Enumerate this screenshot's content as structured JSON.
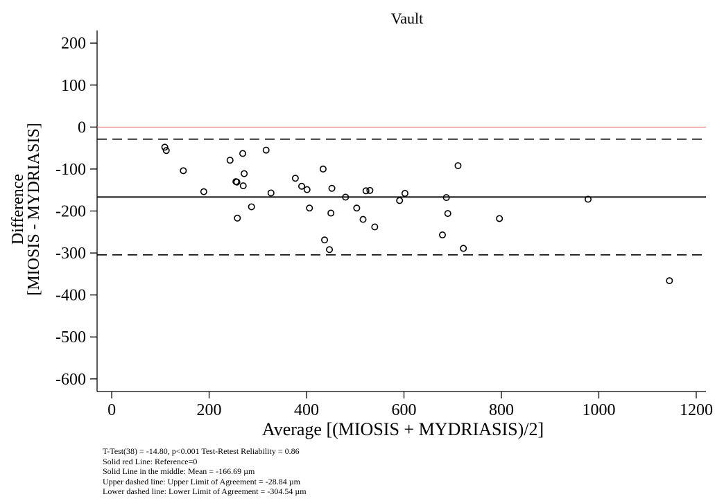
{
  "chart_data": {
    "type": "scatter",
    "title": "Vault",
    "xlabel": "Average [(MIOSIS  + MYDRIASIS)/2]",
    "ylabel": [
      "Difference",
      "[MIOSIS - MYDRIASIS]"
    ],
    "xlim": [
      -30,
      1220
    ],
    "ylim": [
      -630,
      230
    ],
    "xticks": [
      0,
      200,
      400,
      600,
      800,
      1000,
      1200
    ],
    "yticks": [
      200,
      100,
      0,
      -100,
      -200,
      -300,
      -400,
      -500,
      -600
    ],
    "grid": false,
    "reference_line": {
      "y": 0,
      "color": "#e06060",
      "label": "Reference=0"
    },
    "mean_line": {
      "y": -166.69
    },
    "upper_limit_line": {
      "y": -28.84
    },
    "lower_limit_line": {
      "y": -304.54
    },
    "points": [
      [
        109,
        -48
      ],
      [
        112,
        -56
      ],
      [
        147,
        -104
      ],
      [
        189,
        -154
      ],
      [
        243,
        -79
      ],
      [
        255,
        -130
      ],
      [
        257,
        -131
      ],
      [
        258,
        -217
      ],
      [
        269,
        -63
      ],
      [
        270,
        -140
      ],
      [
        272,
        -111
      ],
      [
        287,
        -190
      ],
      [
        317,
        -55
      ],
      [
        327,
        -157
      ],
      [
        377,
        -122
      ],
      [
        390,
        -141
      ],
      [
        401,
        -149
      ],
      [
        406,
        -193
      ],
      [
        434,
        -100
      ],
      [
        437,
        -269
      ],
      [
        447,
        -292
      ],
      [
        450,
        -205
      ],
      [
        452,
        -146
      ],
      [
        480,
        -167
      ],
      [
        503,
        -193
      ],
      [
        516,
        -220
      ],
      [
        522,
        -152
      ],
      [
        530,
        -151
      ],
      [
        540,
        -238
      ],
      [
        591,
        -175
      ],
      [
        602,
        -158
      ],
      [
        679,
        -257
      ],
      [
        687,
        -168
      ],
      [
        690,
        -206
      ],
      [
        711,
        -92
      ],
      [
        722,
        -289
      ],
      [
        796,
        -218
      ],
      [
        978,
        -172
      ],
      [
        1145,
        -366
      ]
    ]
  },
  "notes": [
    "T-Test(38) = -14.80, p<0.001 Test-Retest Reliability = 0.86",
    "Solid red Line: Reference=0",
    "Solid Line in the middle: Mean = -166.69 µm",
    "Upper dashed line: Upper Limit of Agreement = -28.84 µm",
    "Lower dashed line: Lower Limit of Agreement = -304.54 µm"
  ]
}
